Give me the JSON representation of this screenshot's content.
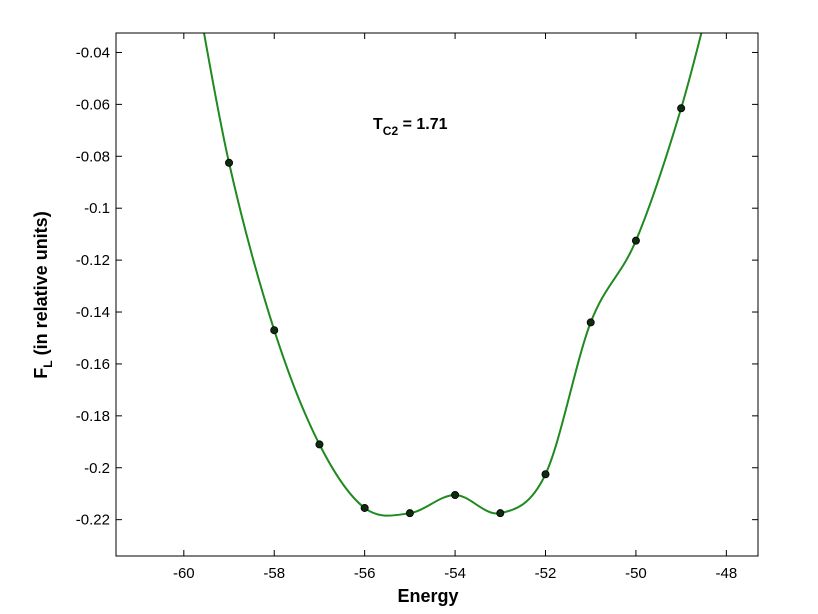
{
  "chart_data": {
    "type": "line",
    "xlabel": "Energy",
    "ylabel_main": "F",
    "ylabel_sub": "L",
    "ylabel_rest": " (in relative units)",
    "annotation": {
      "main": "T",
      "sub": "C2",
      "rest": " = 1.71"
    },
    "xlim": [
      -61.5,
      -47.3
    ],
    "ylim": [
      -0.234,
      -0.0325
    ],
    "xticks": [
      -60,
      -58,
      -56,
      -54,
      -52,
      -50,
      -48
    ],
    "xtick_labels": [
      "-60",
      "-58",
      "-56",
      "-54",
      "-52",
      "-50",
      "-48"
    ],
    "yticks": [
      -0.04,
      -0.06,
      -0.08,
      -0.1,
      -0.12,
      -0.14,
      -0.16,
      -0.18,
      -0.2,
      -0.22
    ],
    "ytick_labels": [
      "-0.04",
      "-0.06",
      "-0.08",
      "-0.1",
      "-0.12",
      "-0.14",
      "-0.16",
      "-0.18",
      "-0.2",
      "-0.22"
    ],
    "grid": false,
    "colors": {
      "curve": "#1f8a1f",
      "points": "#0f2a0f"
    },
    "series": [
      {
        "x": [
          -59,
          -58,
          -57,
          -56,
          -55,
          -54,
          -53,
          -52,
          -51,
          -50,
          -49
        ],
        "values": [
          -0.0825,
          -0.147,
          -0.191,
          -0.2155,
          -0.2175,
          -0.2105,
          -0.2175,
          -0.2025,
          -0.144,
          -0.1125,
          -0.0615
        ]
      }
    ]
  }
}
